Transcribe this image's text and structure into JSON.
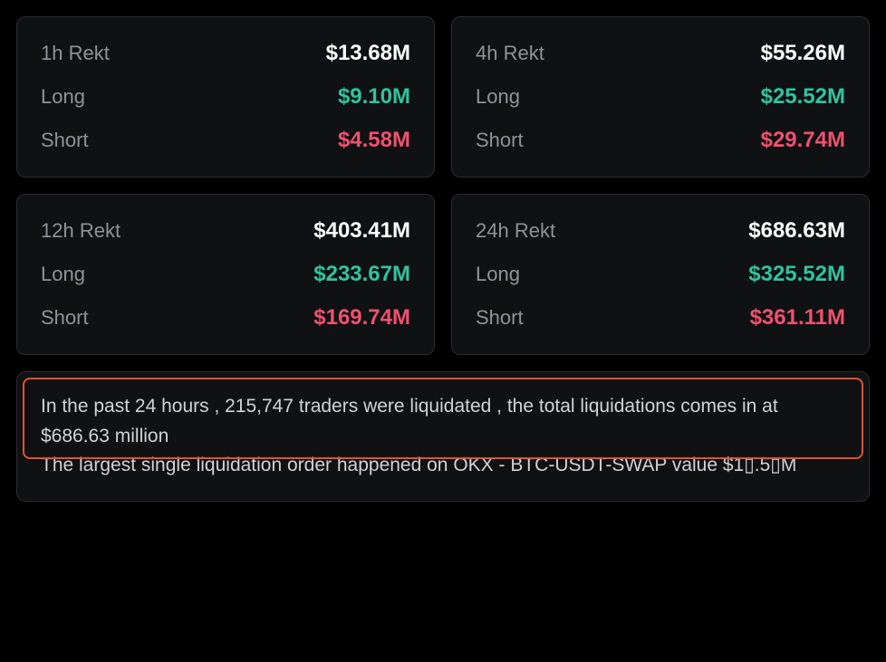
{
  "cards": [
    {
      "title_label": "1h Rekt",
      "title_value": "$13.68M",
      "long_label": "Long",
      "long_value": "$9.10M",
      "short_label": "Short",
      "short_value": "$4.58M"
    },
    {
      "title_label": "4h Rekt",
      "title_value": "$55.26M",
      "long_label": "Long",
      "long_value": "$25.52M",
      "short_label": "Short",
      "short_value": "$29.74M"
    },
    {
      "title_label": "12h Rekt",
      "title_value": "$403.41M",
      "long_label": "Long",
      "long_value": "$233.67M",
      "short_label": "Short",
      "short_value": "$169.74M"
    },
    {
      "title_label": "24h Rekt",
      "title_value": "$686.63M",
      "long_label": "Long",
      "long_value": "$325.52M",
      "short_label": "Short",
      "short_value": "$361.11M"
    }
  ],
  "summary": {
    "line1": "In the past 24 hours , 215,747 traders were liquidated , the total liquidations comes in at $686.63 million",
    "line2": "The largest single liquidation order happened on OKX - BTC-USDT-SWAP value $1▯.5▯M"
  },
  "colors": {
    "background": "#000000",
    "card_bg": "#0f1113",
    "card_border": "#2a2d31",
    "label_text": "#8f9399",
    "value_white": "#ffffff",
    "value_green": "#2ec4a0",
    "value_red": "#f0506e",
    "summary_text": "#d0d3d7",
    "highlight_border": "#e4532b"
  },
  "typography": {
    "label_fontsize": 22,
    "value_fontsize": 24,
    "summary_fontsize": 21
  }
}
